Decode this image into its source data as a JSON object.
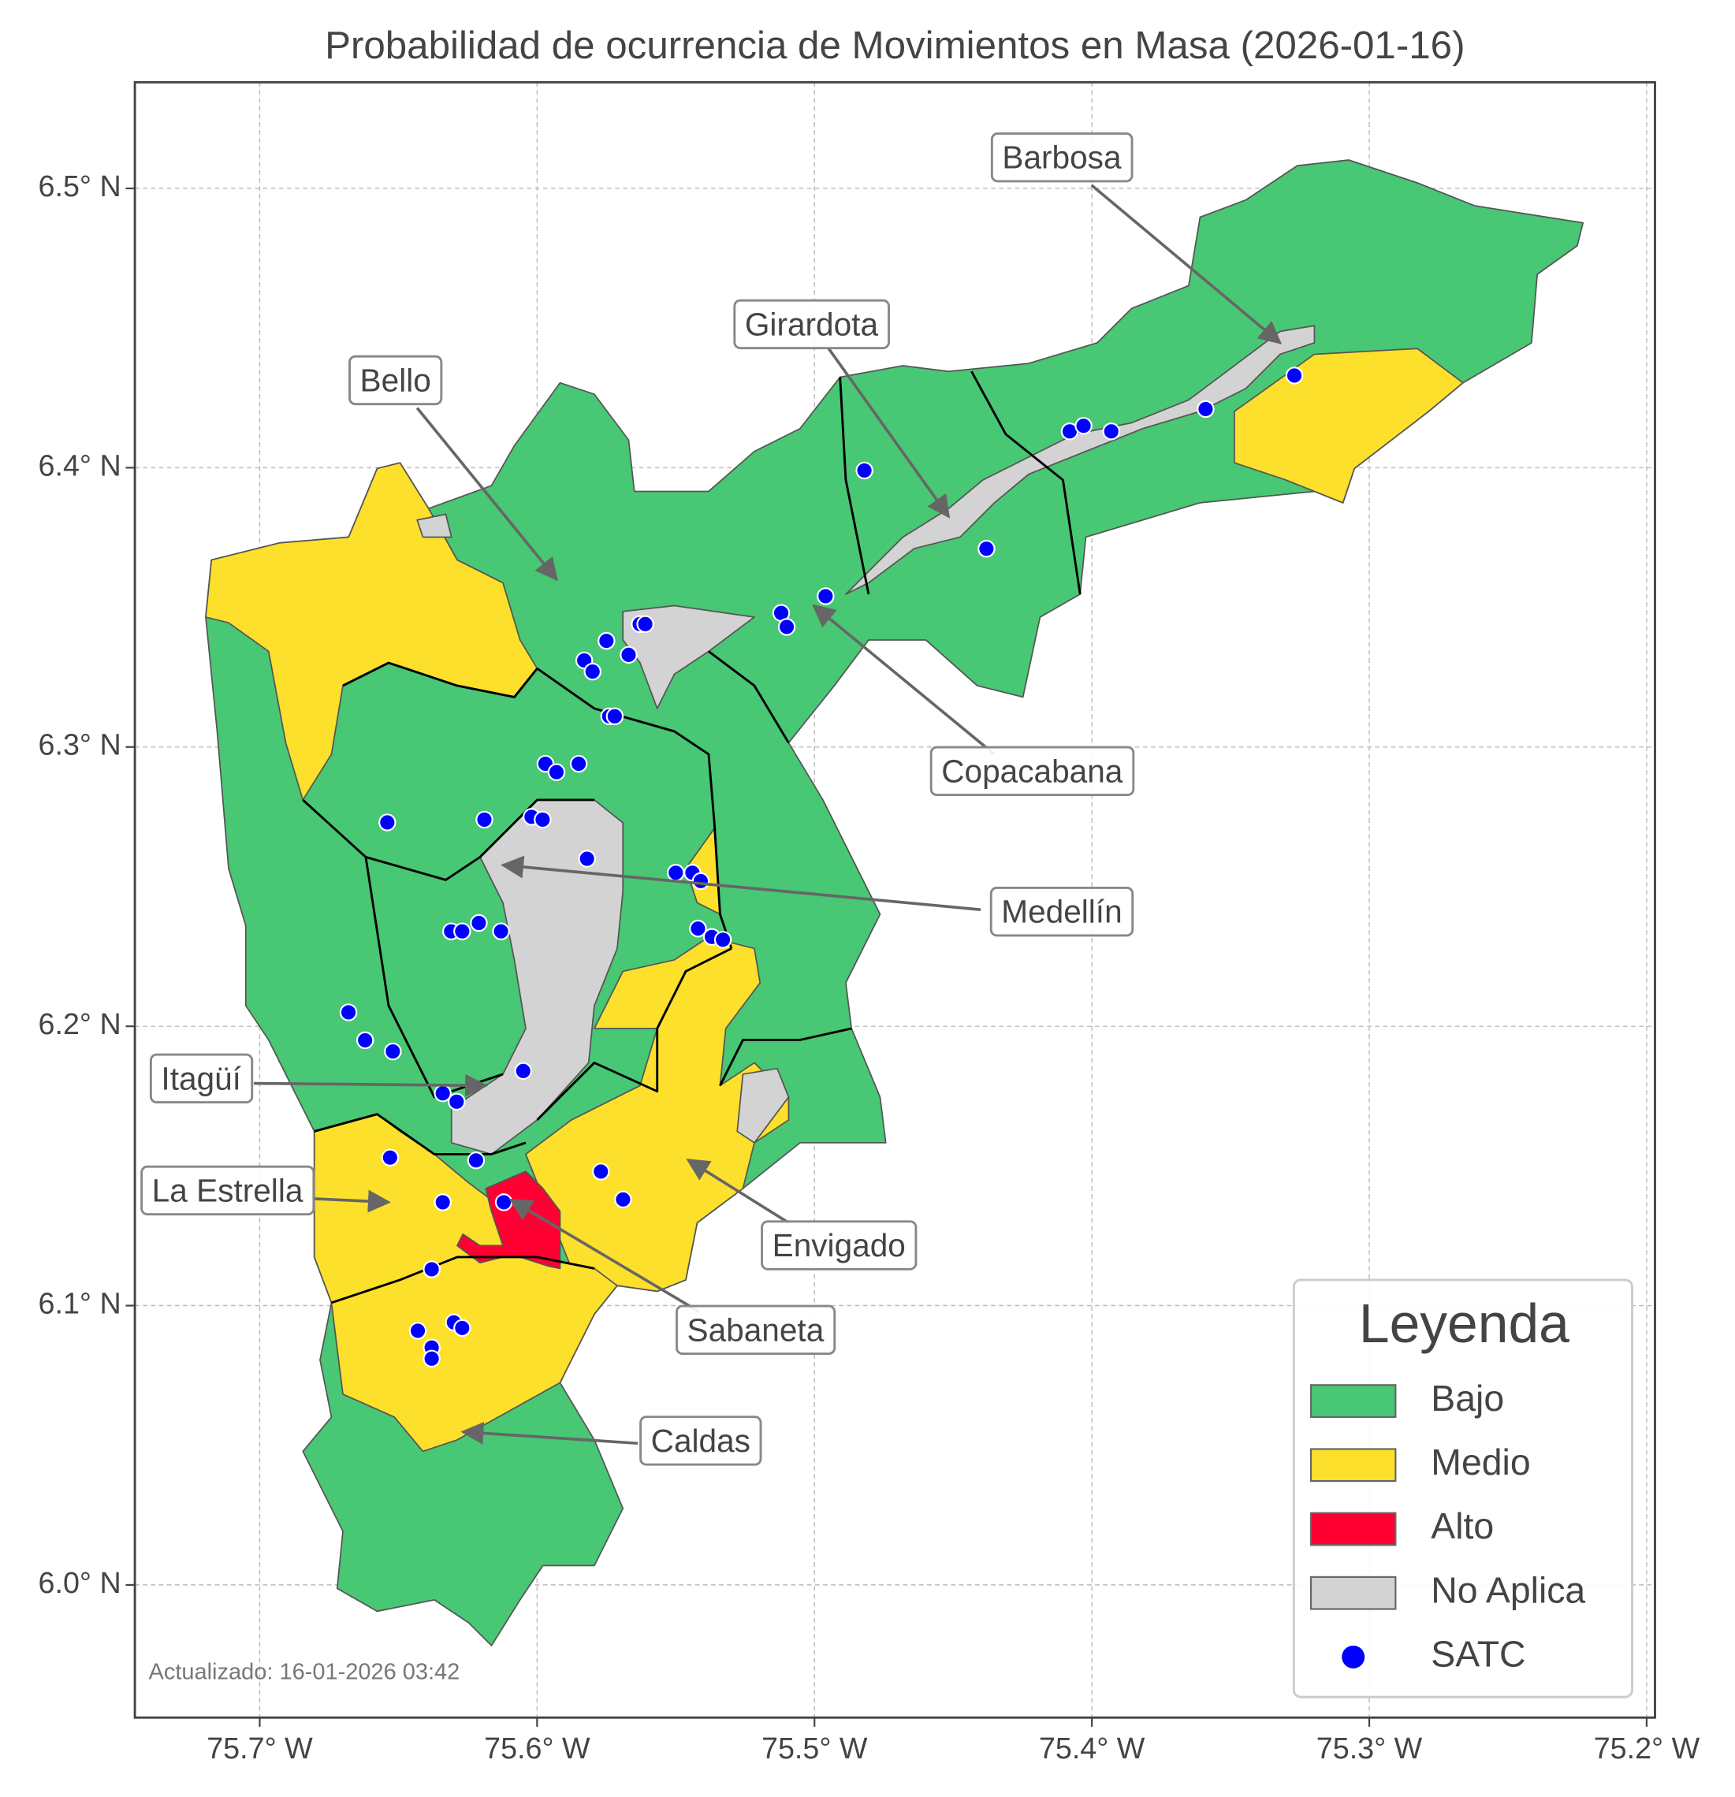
{
  "chart_data": {
    "type": "map",
    "title": "Probabilidad de ocurrencia de Movimientos en Masa (2026-01-16)",
    "xlim": [
      -75.745,
      -75.197
    ],
    "ylim": [
      5.9525,
      6.538
    ],
    "xticks": [
      {
        "value": -75.7,
        "label": "75.7° W"
      },
      {
        "value": -75.6,
        "label": "75.6° W"
      },
      {
        "value": -75.5,
        "label": "75.5° W"
      },
      {
        "value": -75.4,
        "label": "75.4° W"
      },
      {
        "value": -75.3,
        "label": "75.3° W"
      },
      {
        "value": -75.2,
        "label": "75.2° W"
      }
    ],
    "yticks": [
      {
        "value": 6.0,
        "label": "6.0° N"
      },
      {
        "value": 6.1,
        "label": "6.1° N"
      },
      {
        "value": 6.2,
        "label": "6.2° N"
      },
      {
        "value": 6.3,
        "label": "6.3° N"
      },
      {
        "value": 6.4,
        "label": "6.4° N"
      },
      {
        "value": 6.5,
        "label": "6.5° N"
      }
    ],
    "grid": true,
    "legend": {
      "title": "Leyenda",
      "position": "lower right",
      "entries": [
        {
          "name": "Bajo",
          "color": "#48c774"
        },
        {
          "name": "Medio",
          "color": "#fde02b"
        },
        {
          "name": "Alto",
          "color": "#ff0033"
        },
        {
          "name": "No Aplica",
          "color": "#d3d3d3"
        }
      ]
    },
    "series": [
      {
        "name": "SATC",
        "color": "#0000ff",
        "x": [
          -75.327,
          -75.359,
          -75.408,
          -75.403,
          -75.393,
          -75.482,
          -75.438,
          -75.496,
          -75.512,
          -75.51,
          -75.563,
          -75.561,
          -75.575,
          -75.567,
          -75.583,
          -75.58,
          -75.574,
          -75.572,
          -75.597,
          -75.593,
          -75.585,
          -75.654,
          -75.619,
          -75.602,
          -75.598,
          -75.582,
          -75.55,
          -75.544,
          -75.541,
          -75.542,
          -75.537,
          -75.533,
          -75.631,
          -75.627,
          -75.621,
          -75.613,
          -75.668,
          -75.662,
          -75.652,
          -75.605,
          -75.634,
          -75.629,
          -75.653,
          -75.622,
          -75.577,
          -75.569,
          -75.634,
          -75.612,
          -75.638,
          -75.643,
          -75.63,
          -75.627,
          -75.638,
          -75.638
        ],
        "values": [
          6.433,
          6.421,
          6.413,
          6.415,
          6.413,
          6.399,
          6.371,
          6.354,
          6.348,
          6.343,
          6.344,
          6.344,
          6.338,
          6.333,
          6.331,
          6.327,
          6.311,
          6.311,
          6.294,
          6.291,
          6.294,
          6.273,
          6.274,
          6.275,
          6.274,
          6.26,
          6.255,
          6.255,
          6.252,
          6.235,
          6.232,
          6.231,
          6.234,
          6.234,
          6.237,
          6.234,
          6.205,
          6.195,
          6.191,
          6.184,
          6.176,
          6.173,
          6.153,
          6.152,
          6.148,
          6.138,
          6.137,
          6.137,
          6.113,
          6.091,
          6.094,
          6.092,
          6.085,
          6.081
        ]
      }
    ],
    "annotations": [
      "Barbosa",
      "Girardota",
      "Bello",
      "Copacabana",
      "Medellín",
      "Itagüí",
      "La Estrella",
      "Envigado",
      "Sabaneta",
      "Caldas"
    ],
    "footnote": "Actualizado: 16-01-2026 03:42"
  }
}
